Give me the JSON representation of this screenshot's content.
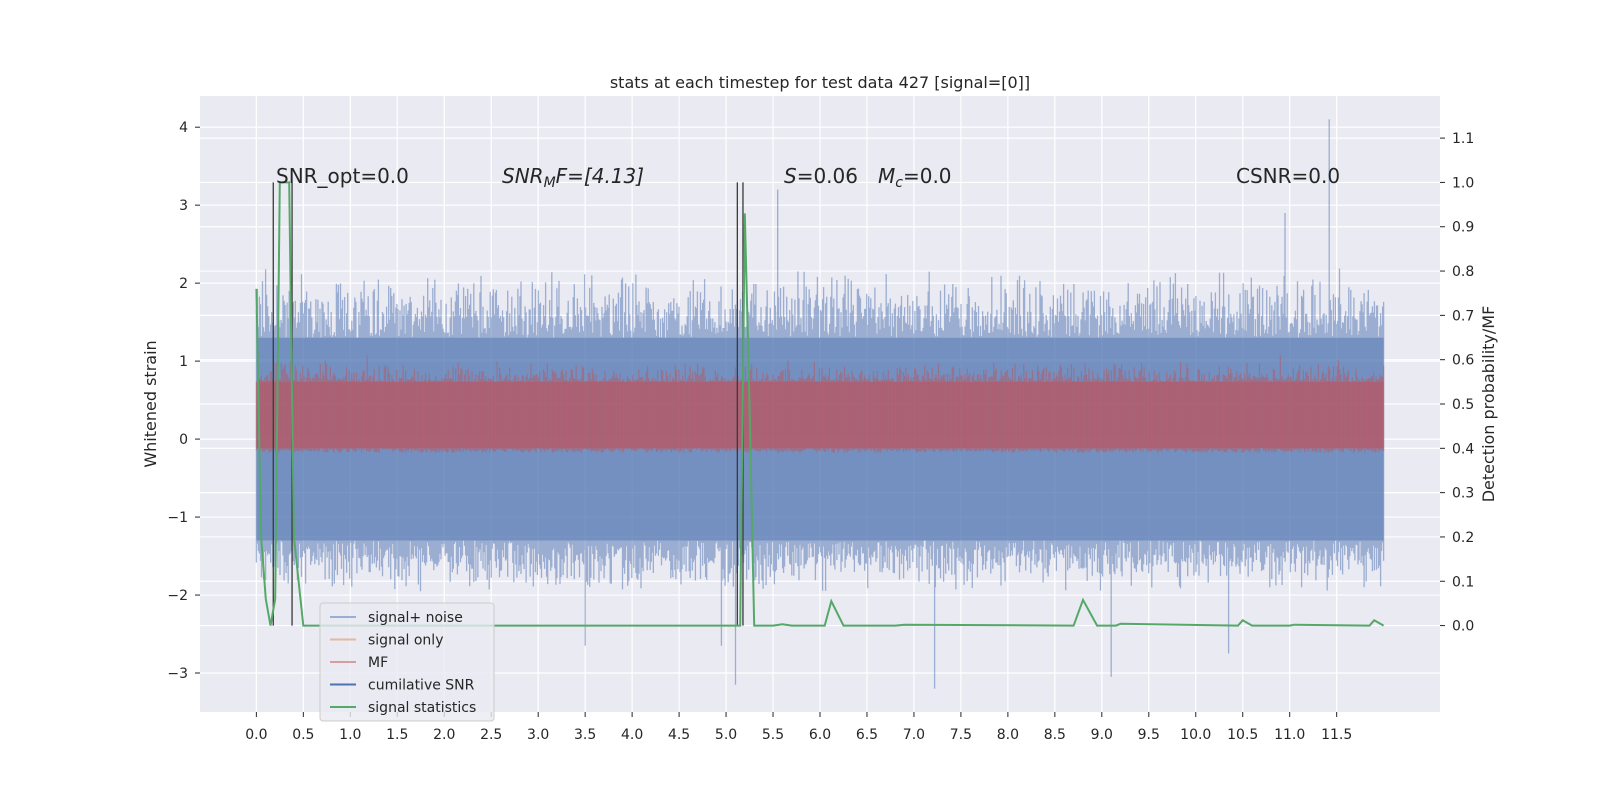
{
  "chart_data": {
    "type": "line",
    "title": "stats at each timestep for test data 427 [signal=[0]]",
    "xlabel": "",
    "ylabel": "Whitened strain",
    "ylabel_right": "Detection probability/MF",
    "xlim": [
      -0.6,
      12.6
    ],
    "ylim": [
      -3.5,
      4.4
    ],
    "ylim_right": [
      -0.195,
      1.195
    ],
    "x_ticks": [
      "0.0",
      "0.5",
      "1.0",
      "1.5",
      "2.0",
      "2.5",
      "3.0",
      "3.5",
      "4.0",
      "4.5",
      "5.0",
      "5.5",
      "6.0",
      "6.5",
      "7.0",
      "7.5",
      "8.0",
      "8.5",
      "9.0",
      "9.5",
      "10.0",
      "10.5",
      "11.0",
      "11.5"
    ],
    "y_ticks": [
      "4",
      "3",
      "2",
      "1",
      "0",
      "−1",
      "−2",
      "−3"
    ],
    "y_ticks_right": [
      "1.1",
      "1.0",
      "0.9",
      "0.8",
      "0.7",
      "0.6",
      "0.5",
      "0.4",
      "0.3",
      "0.2",
      "0.1",
      "0.0"
    ],
    "grid": true,
    "legend_position": "lower-left",
    "annotations": {
      "snr_opt": "SNR_opt=0.0",
      "snr_mf_sym": "SNR",
      "snr_mf_sub": "M",
      "snr_mf_rest": "F=[4.13]",
      "s_sym": "S",
      "s_rest": "=0.06",
      "mc_sym": "M",
      "mc_sub": "c",
      "mc_rest": "=0.0",
      "csnr": "CSNR=0.0"
    },
    "legend": [
      {
        "label": "signal+ noise",
        "color": "#4c72b0",
        "opacity": 0.5
      },
      {
        "label": "signal only",
        "color": "#dd8452",
        "opacity": 0.5
      },
      {
        "label": "MF",
        "color": "#c44e52",
        "opacity": 0.5
      },
      {
        "label": "cumilative SNR",
        "color": "#4c72b0",
        "opacity": 1
      },
      {
        "label": "signal statistics",
        "color": "#55a868",
        "opacity": 1
      }
    ],
    "series": [
      {
        "name": "signal+ noise",
        "axis": "left",
        "style": "noise envelope",
        "x_range": [
          0.0,
          12.0
        ],
        "core_range": [
          -1.3,
          1.3
        ],
        "typical_max": 2.2,
        "typical_min": -2.0,
        "peaks": [
          {
            "x": 5.55,
            "y": 3.2
          },
          {
            "x": 11.42,
            "y": 4.1
          },
          {
            "x": 10.95,
            "y": 2.9
          },
          {
            "x": 5.1,
            "y": -3.15
          },
          {
            "x": 7.22,
            "y": -3.2
          },
          {
            "x": 9.1,
            "y": -3.05
          },
          {
            "x": 3.5,
            "y": -2.65
          },
          {
            "x": 4.95,
            "y": -2.65
          },
          {
            "x": 10.35,
            "y": -2.75
          }
        ]
      },
      {
        "name": "MF",
        "axis": "right",
        "style": "noise band",
        "x_range": [
          0.0,
          12.0
        ],
        "band": [
          0.4,
          0.55
        ],
        "typical_max": 0.6,
        "peaks": [
          {
            "x": 1.18,
            "y": 0.61
          },
          {
            "x": 10.9,
            "y": 0.61
          }
        ]
      },
      {
        "name": "signal statistics",
        "axis": "right",
        "x": [
          0.0,
          0.05,
          0.1,
          0.15,
          0.2,
          0.25,
          0.3,
          0.35,
          0.4,
          0.45,
          0.5,
          5.15,
          5.2,
          5.25,
          5.3,
          5.5,
          5.6,
          5.7,
          5.8,
          6.05,
          6.12,
          6.25,
          6.8,
          6.9,
          8.7,
          8.8,
          8.95,
          9.15,
          9.2,
          10.45,
          10.5,
          10.6,
          11.0,
          11.05,
          11.85,
          11.9,
          12.0
        ],
        "y": [
          0.76,
          0.2,
          0.06,
          0.0,
          0.06,
          1.0,
          1.0,
          1.0,
          0.2,
          0.1,
          0.0,
          0.0,
          0.93,
          0.5,
          0.0,
          0.0,
          0.003,
          0.0,
          0.0,
          0.0,
          0.055,
          0.0,
          0.0,
          0.002,
          0.0,
          0.058,
          0.0,
          0.0,
          0.004,
          0.0,
          0.012,
          0.0,
          0.0,
          0.002,
          0.0,
          0.012,
          0.0
        ]
      },
      {
        "name": "MF markers",
        "axis": "right",
        "style": "vertical lines",
        "x": [
          0.18,
          0.38,
          5.12,
          5.18
        ],
        "y_range": [
          0.0,
          1.0
        ]
      }
    ]
  }
}
